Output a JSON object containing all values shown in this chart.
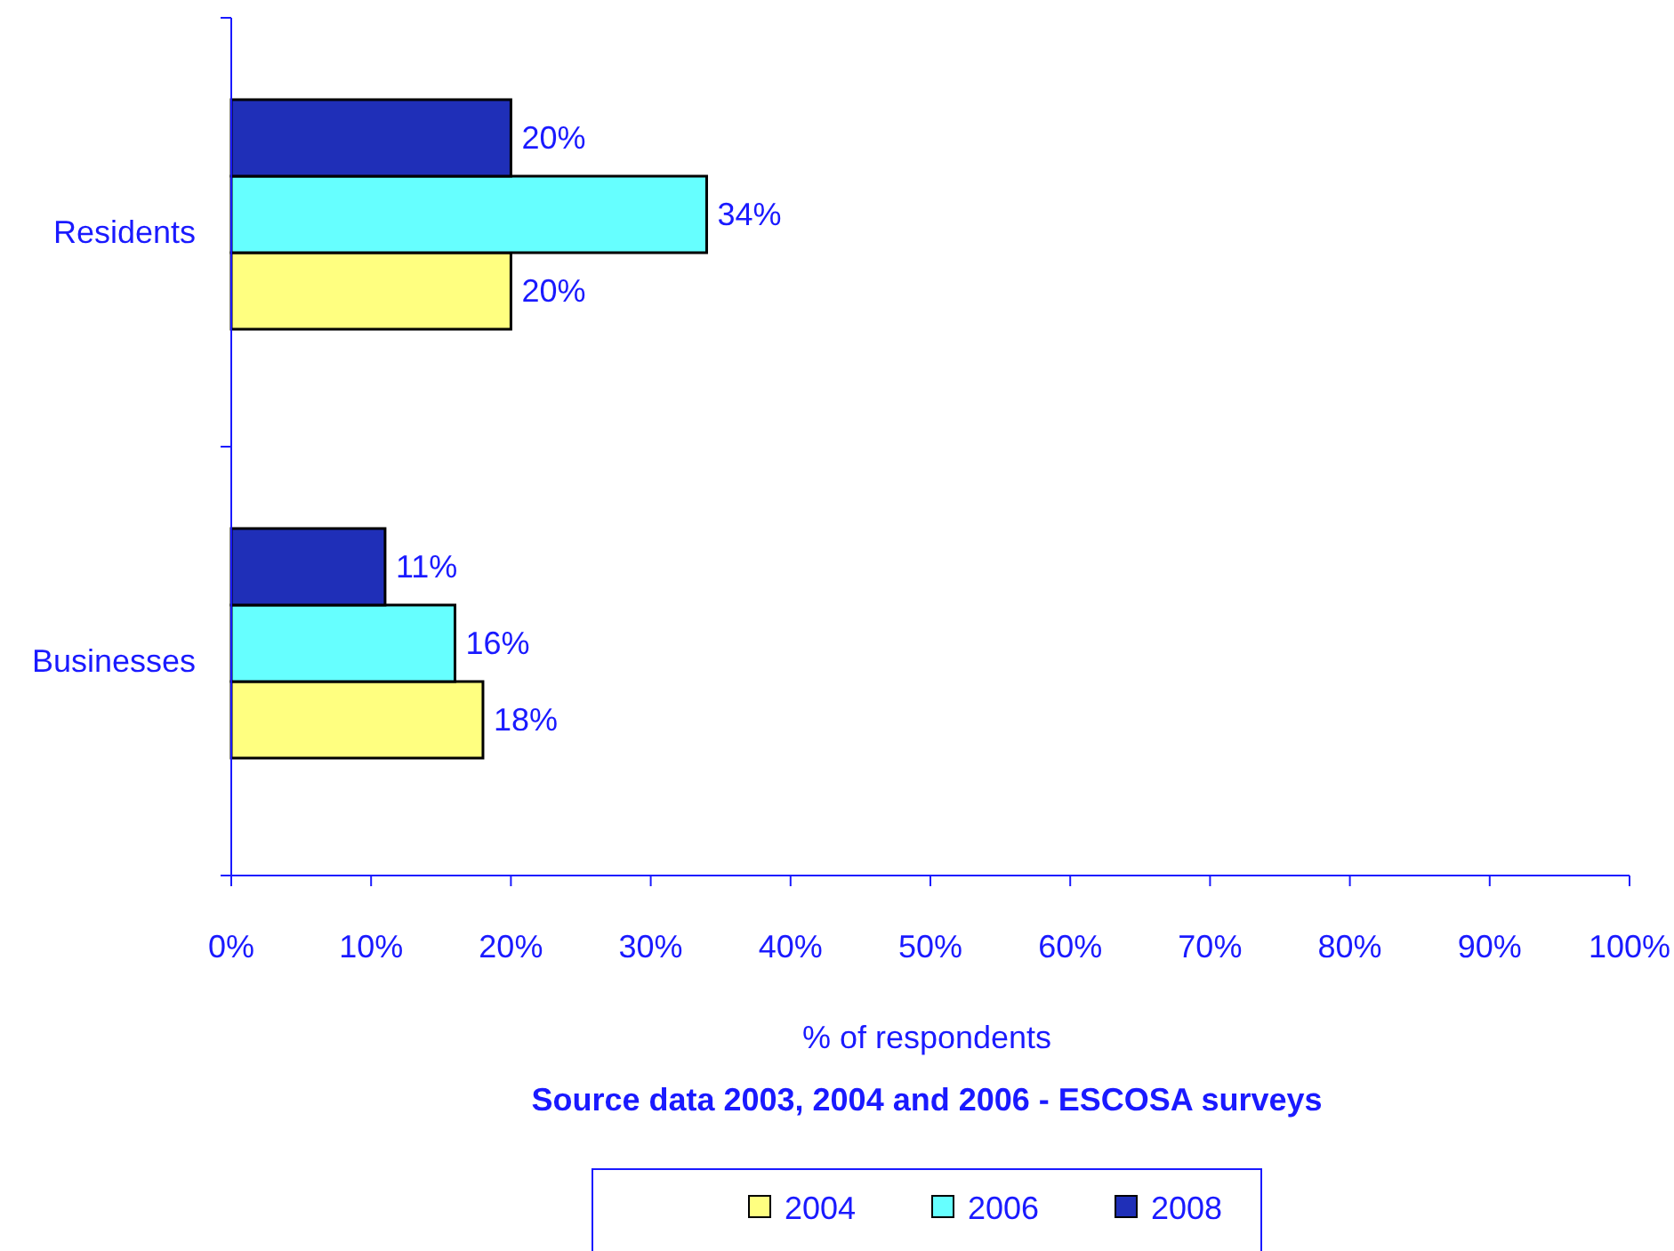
{
  "chart_data": {
    "type": "bar",
    "orientation": "horizontal",
    "categories": [
      "Residents",
      "Businesses"
    ],
    "series": [
      {
        "name": "2004",
        "color": "#ffff80",
        "values": [
          20,
          18
        ],
        "value_labels": [
          "20%",
          "18%"
        ]
      },
      {
        "name": "2006",
        "color": "#66ffff",
        "values": [
          34,
          16
        ],
        "value_labels": [
          "34%",
          "16%"
        ]
      },
      {
        "name": "2008",
        "color": "#1f2fb8",
        "values": [
          20,
          11
        ],
        "value_labels": [
          "20%",
          "11%"
        ]
      }
    ],
    "xlim": [
      0,
      100
    ],
    "xticks": [
      {
        "value": 0,
        "label": "0%"
      },
      {
        "value": 10,
        "label": "10%"
      },
      {
        "value": 20,
        "label": "20%"
      },
      {
        "value": 30,
        "label": "30%"
      },
      {
        "value": 40,
        "label": "40%"
      },
      {
        "value": 50,
        "label": "50%"
      },
      {
        "value": 60,
        "label": "60%"
      },
      {
        "value": 70,
        "label": "70%"
      },
      {
        "value": 80,
        "label": "80%"
      },
      {
        "value": 90,
        "label": "90%"
      },
      {
        "value": 100,
        "label": "100%"
      }
    ],
    "xlabel": "%  of respondents",
    "annotations": [
      "Source data 2003, 2004 and 2006 - ESCOSA surveys"
    ],
    "grid": false,
    "legend": "bottom"
  }
}
